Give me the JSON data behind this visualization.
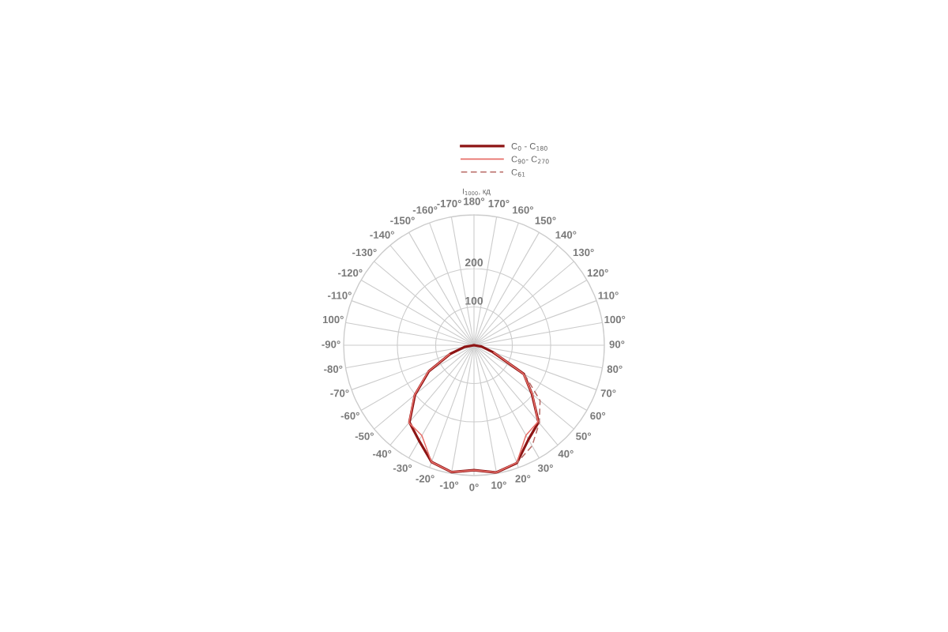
{
  "chart_data": {
    "type": "radar",
    "ylabel": "I$_{1000}$, кд",
    "categories": [
      "180°",
      "170°",
      "160°",
      "150°",
      "140°",
      "130°",
      "120°",
      "110°",
      "100°",
      "90°",
      "80°",
      "70°",
      "60°",
      "50°",
      "40°",
      "30°",
      "20°",
      "10°",
      "0°",
      "-10°",
      "-20°",
      "-30°",
      "-40°",
      "-50°",
      "-60°",
      "-70°",
      "-80°",
      "-90°",
      "100°",
      "-110°",
      "-120°",
      "-130°",
      "-140°",
      "-150°",
      "-160°",
      "-170°"
    ],
    "ylim": [
      0,
      340
    ],
    "yticks": [
      100,
      200
    ],
    "grid": true,
    "legend": "top",
    "series": [
      {
        "name": "C$_{0}$ - C$_{180}$",
        "color": "#8e1515",
        "line_style": "solid",
        "values": [
          0,
          0,
          0,
          0,
          0,
          0,
          0,
          0,
          0,
          0,
          20,
          52,
          150,
          197,
          262,
          284,
          327,
          337,
          326,
          336,
          324,
          287,
          262,
          201,
          136,
          66,
          25,
          0,
          0,
          0,
          0,
          0,
          0,
          0,
          0,
          0
        ]
      },
      {
        "name": "C$_{90}$- C$_{270}$",
        "color": "#e8706a",
        "line_style": "solid",
        "values": [
          null,
          null,
          null,
          null,
          null,
          null,
          null,
          null,
          null,
          null,
          null,
          55,
          148,
          199,
          260,
          271,
          326,
          337,
          326,
          336,
          324,
          272,
          264,
          203,
          138,
          68,
          null,
          null,
          null,
          null,
          null,
          null,
          null,
          null,
          null,
          null
        ]
      },
      {
        "name": "C$_{61}$",
        "color": "#b86a66",
        "line_style": "dashed",
        "values": [
          null,
          null,
          null,
          null,
          null,
          null,
          null,
          null,
          null,
          null,
          null,
          null,
          152,
          225,
          265,
          303,
          327,
          null,
          null,
          null,
          null,
          null,
          null,
          null,
          null,
          null,
          null,
          null,
          null,
          null,
          null,
          null,
          null,
          null,
          null,
          null
        ]
      }
    ]
  }
}
